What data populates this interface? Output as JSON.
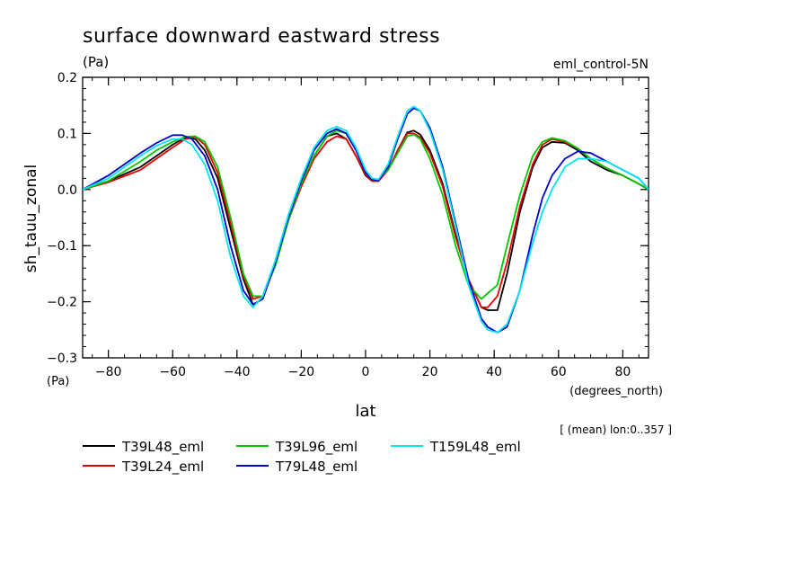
{
  "chart_data": {
    "type": "line",
    "title": "surface downward eastward stress",
    "units": "(Pa)",
    "dataset_label": "eml_control-5N",
    "ylabel": "sh_tauu_zonal",
    "y_units": "(Pa)",
    "xlabel": "lat",
    "x_units": "(degrees_north)",
    "footnote": "[ (mean) lon:0..357 ]",
    "xlim": [
      -88,
      88
    ],
    "ylim": [
      -0.3,
      0.2
    ],
    "x_ticks": [
      {
        "v": -80,
        "label": "−80"
      },
      {
        "v": -60,
        "label": "−60"
      },
      {
        "v": -40,
        "label": "−40"
      },
      {
        "v": -20,
        "label": "−20"
      },
      {
        "v": 0,
        "label": "0"
      },
      {
        "v": 20,
        "label": "20"
      },
      {
        "v": 40,
        "label": "40"
      },
      {
        "v": 60,
        "label": "60"
      },
      {
        "v": 80,
        "label": "80"
      }
    ],
    "y_ticks": [
      {
        "v": 0.2,
        "label": "0.2"
      },
      {
        "v": 0.1,
        "label": "0.1"
      },
      {
        "v": 0.0,
        "label": "0.0"
      },
      {
        "v": -0.1,
        "label": "−0.1"
      },
      {
        "v": -0.2,
        "label": "−0.2"
      },
      {
        "v": -0.3,
        "label": "−0.3"
      }
    ],
    "x_minor_step": 5,
    "y_minor_step": 0.02,
    "grid": false,
    "legend_position": "bottom-left",
    "series": [
      {
        "name": "T39L48_eml",
        "color": "#000000",
        "x": [
          -88,
          -80,
          -70,
          -65,
          -60,
          -56,
          -53,
          -50,
          -46,
          -42,
          -38,
          -35,
          -32,
          -28,
          -24,
          -20,
          -16,
          -12,
          -9,
          -6,
          -3,
          0,
          2,
          4,
          7,
          10,
          13,
          15,
          17,
          20,
          24,
          28,
          32,
          36,
          38,
          41,
          44,
          48,
          52,
          55,
          58,
          62,
          66,
          70,
          75,
          80,
          85,
          88
        ],
        "y": [
          0.0,
          0.015,
          0.04,
          0.06,
          0.08,
          0.093,
          0.09,
          0.07,
          0.02,
          -0.07,
          -0.16,
          -0.205,
          -0.195,
          -0.13,
          -0.05,
          0.01,
          0.06,
          0.095,
          0.1,
          0.09,
          0.06,
          0.025,
          0.015,
          0.015,
          0.035,
          0.07,
          0.102,
          0.105,
          0.098,
          0.07,
          0.01,
          -0.08,
          -0.16,
          -0.21,
          -0.215,
          -0.215,
          -0.15,
          -0.04,
          0.04,
          0.075,
          0.085,
          0.083,
          0.07,
          0.05,
          0.035,
          0.025,
          0.01,
          0.0
        ]
      },
      {
        "name": "T39L24_eml",
        "color": "#e60000",
        "x": [
          -88,
          -80,
          -70,
          -65,
          -60,
          -56,
          -53,
          -50,
          -46,
          -42,
          -38,
          -35,
          -32,
          -28,
          -24,
          -20,
          -16,
          -12,
          -9,
          -6,
          -3,
          0,
          2,
          4,
          7,
          10,
          13,
          15,
          17,
          20,
          24,
          28,
          32,
          36,
          38,
          41,
          44,
          48,
          52,
          55,
          58,
          62,
          66,
          70,
          75,
          80,
          85,
          88
        ],
        "y": [
          0.0,
          0.013,
          0.035,
          0.055,
          0.075,
          0.09,
          0.094,
          0.08,
          0.03,
          -0.06,
          -0.155,
          -0.195,
          -0.19,
          -0.13,
          -0.055,
          0.005,
          0.055,
          0.085,
          0.095,
          0.09,
          0.06,
          0.027,
          0.015,
          0.015,
          0.035,
          0.07,
          0.1,
          0.1,
          0.093,
          0.065,
          0.005,
          -0.085,
          -0.16,
          -0.21,
          -0.21,
          -0.19,
          -0.13,
          -0.03,
          0.045,
          0.08,
          0.09,
          0.085,
          0.073,
          0.055,
          0.038,
          0.025,
          0.01,
          0.0
        ]
      },
      {
        "name": "T39L96_eml",
        "color": "#00c800",
        "x": [
          -88,
          -80,
          -70,
          -65,
          -60,
          -56,
          -53,
          -50,
          -46,
          -42,
          -38,
          -35,
          -32,
          -28,
          -24,
          -20,
          -16,
          -12,
          -9,
          -6,
          -3,
          0,
          2,
          4,
          7,
          10,
          13,
          15,
          17,
          20,
          24,
          28,
          32,
          36,
          38,
          41,
          44,
          48,
          52,
          55,
          58,
          62,
          66,
          70,
          75,
          80,
          85,
          88
        ],
        "y": [
          0.0,
          0.015,
          0.05,
          0.07,
          0.085,
          0.094,
          0.095,
          0.085,
          0.04,
          -0.05,
          -0.15,
          -0.19,
          -0.19,
          -0.135,
          -0.055,
          0.01,
          0.06,
          0.095,
          0.105,
          0.1,
          0.07,
          0.03,
          0.018,
          0.018,
          0.035,
          0.065,
          0.095,
          0.098,
          0.09,
          0.055,
          -0.01,
          -0.1,
          -0.17,
          -0.195,
          -0.185,
          -0.17,
          -0.1,
          -0.01,
          0.06,
          0.085,
          0.092,
          0.087,
          0.073,
          0.055,
          0.038,
          0.025,
          0.01,
          0.0
        ]
      },
      {
        "name": "T79L48_eml",
        "color": "#0000c8",
        "x": [
          -88,
          -80,
          -75,
          -70,
          -65,
          -60,
          -57,
          -54,
          -50,
          -46,
          -42,
          -38,
          -35,
          -32,
          -28,
          -24,
          -20,
          -16,
          -12,
          -9,
          -6,
          -3,
          0,
          2,
          4,
          7,
          10,
          13,
          15,
          17,
          20,
          24,
          28,
          32,
          36,
          38,
          41,
          44,
          48,
          52,
          55,
          58,
          62,
          66,
          70,
          75,
          80,
          85,
          88
        ],
        "y": [
          0.0,
          0.025,
          0.045,
          0.065,
          0.083,
          0.097,
          0.097,
          0.09,
          0.06,
          0.0,
          -0.1,
          -0.18,
          -0.205,
          -0.195,
          -0.13,
          -0.05,
          0.015,
          0.07,
          0.1,
          0.108,
          0.1,
          0.07,
          0.03,
          0.018,
          0.016,
          0.04,
          0.09,
          0.135,
          0.145,
          0.14,
          0.11,
          0.04,
          -0.06,
          -0.16,
          -0.23,
          -0.245,
          -0.255,
          -0.245,
          -0.18,
          -0.08,
          -0.015,
          0.025,
          0.055,
          0.068,
          0.065,
          0.05,
          0.035,
          0.02,
          0.0
        ]
      },
      {
        "name": "T159L48_eml",
        "color": "#00e6f0",
        "x": [
          -88,
          -80,
          -75,
          -70,
          -65,
          -60,
          -57,
          -54,
          -50,
          -46,
          -42,
          -38,
          -35,
          -32,
          -28,
          -24,
          -20,
          -16,
          -12,
          -9,
          -6,
          -3,
          0,
          2,
          4,
          7,
          10,
          13,
          15,
          17,
          20,
          24,
          28,
          32,
          36,
          38,
          41,
          44,
          48,
          52,
          55,
          58,
          62,
          66,
          70,
          75,
          80,
          85,
          88
        ],
        "y": [
          0.0,
          0.02,
          0.04,
          0.06,
          0.078,
          0.09,
          0.09,
          0.08,
          0.045,
          -0.02,
          -0.12,
          -0.19,
          -0.21,
          -0.19,
          -0.125,
          -0.045,
          0.02,
          0.075,
          0.105,
          0.112,
          0.105,
          0.075,
          0.035,
          0.02,
          0.018,
          0.045,
          0.095,
          0.14,
          0.148,
          0.14,
          0.105,
          0.035,
          -0.065,
          -0.17,
          -0.235,
          -0.25,
          -0.255,
          -0.24,
          -0.18,
          -0.095,
          -0.04,
          0.0,
          0.04,
          0.055,
          0.055,
          0.05,
          0.035,
          0.02,
          0.0
        ]
      }
    ]
  }
}
